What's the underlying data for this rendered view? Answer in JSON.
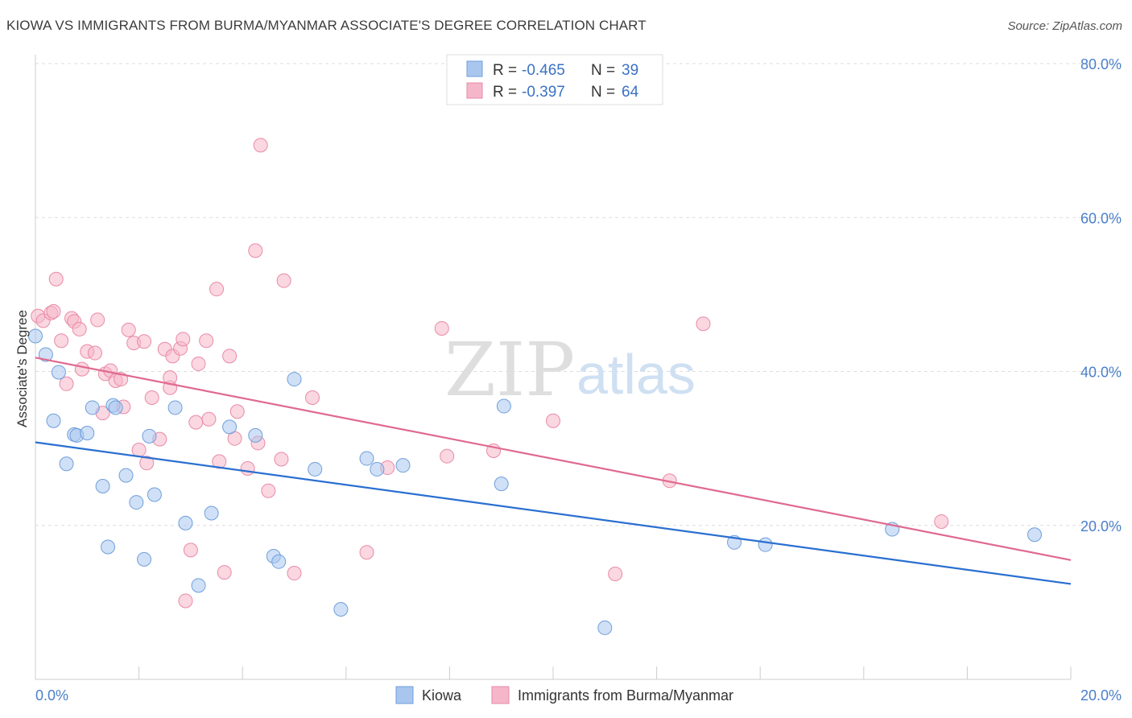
{
  "title": "KIOWA VS IMMIGRANTS FROM BURMA/MYANMAR ASSOCIATE'S DEGREE CORRELATION CHART",
  "source": "Source: ZipAtlas.com",
  "watermark": {
    "zip": "ZIP",
    "atlas": "atlas"
  },
  "colors": {
    "kiowa": "#a9c6ee",
    "kiowa_stroke": "#6f9fdc",
    "kiowa_line": "#2a6fd0",
    "burma": "#f5b6c9",
    "burma_stroke": "#e98aa7",
    "burma_line": "#e0698f",
    "tick_label": "#4a7fc9",
    "grid": "#dddddd"
  },
  "legend": {
    "rows": [
      {
        "r_label": "R =",
        "r_value": "-0.465",
        "n_label": "N =",
        "n_value": "39"
      },
      {
        "r_label": "R =",
        "r_value": "-0.397",
        "n_label": "N =",
        "n_value": "64"
      }
    ]
  },
  "chart_data": {
    "type": "scatter",
    "title": "KIOWA VS IMMIGRANTS FROM BURMA/MYANMAR ASSOCIATE'S DEGREE CORRELATION CHART",
    "xlabel": "",
    "ylabel": "Associate's Degree",
    "xlim": [
      0,
      20
    ],
    "ylim": [
      0,
      80
    ],
    "x_tick_labels": [
      "0.0%",
      "20.0%"
    ],
    "y_ticks": [
      20,
      40,
      60,
      80
    ],
    "y_tick_labels": [
      "20.0%",
      "40.0%",
      "60.0%",
      "80.0%"
    ],
    "grid": true,
    "legend_position": "bottom",
    "series": [
      {
        "name": "Kiowa",
        "trend": {
          "x": [
            0,
            20
          ],
          "y": [
            30.8,
            12.4
          ]
        },
        "points": [
          [
            0.0,
            44.6
          ],
          [
            0.2,
            42.2
          ],
          [
            0.35,
            33.6
          ],
          [
            0.45,
            39.9
          ],
          [
            0.6,
            28.0
          ],
          [
            0.75,
            31.8
          ],
          [
            0.8,
            31.7
          ],
          [
            1.0,
            32.0
          ],
          [
            1.1,
            35.3
          ],
          [
            1.3,
            25.1
          ],
          [
            1.4,
            17.2
          ],
          [
            1.5,
            35.6
          ],
          [
            1.55,
            35.3
          ],
          [
            1.75,
            26.5
          ],
          [
            1.95,
            23.0
          ],
          [
            2.1,
            15.6
          ],
          [
            2.2,
            31.6
          ],
          [
            2.3,
            24.0
          ],
          [
            2.7,
            35.3
          ],
          [
            2.9,
            20.3
          ],
          [
            3.15,
            12.2
          ],
          [
            3.4,
            21.6
          ],
          [
            3.75,
            32.8
          ],
          [
            4.25,
            31.7
          ],
          [
            4.6,
            16.0
          ],
          [
            4.7,
            15.3
          ],
          [
            5.0,
            39.0
          ],
          [
            5.4,
            27.3
          ],
          [
            5.9,
            9.1
          ],
          [
            6.4,
            28.7
          ],
          [
            6.6,
            27.3
          ],
          [
            7.1,
            27.8
          ],
          [
            9.0,
            25.4
          ],
          [
            9.05,
            35.5
          ],
          [
            11.0,
            6.7
          ],
          [
            13.5,
            17.8
          ],
          [
            14.1,
            17.5
          ],
          [
            16.55,
            19.5
          ],
          [
            19.3,
            18.8
          ]
        ]
      },
      {
        "name": "Immigrants from Burma/Myanmar",
        "trend": {
          "x": [
            0,
            20
          ],
          "y": [
            41.8,
            15.5
          ]
        },
        "points": [
          [
            0.05,
            47.2
          ],
          [
            0.15,
            46.6
          ],
          [
            0.3,
            47.6
          ],
          [
            0.35,
            47.8
          ],
          [
            0.4,
            52.0
          ],
          [
            0.5,
            44.0
          ],
          [
            0.6,
            38.4
          ],
          [
            0.7,
            46.9
          ],
          [
            0.75,
            46.5
          ],
          [
            0.85,
            45.5
          ],
          [
            0.9,
            40.3
          ],
          [
            1.0,
            42.6
          ],
          [
            1.15,
            42.4
          ],
          [
            1.2,
            46.7
          ],
          [
            1.3,
            34.6
          ],
          [
            1.35,
            39.7
          ],
          [
            1.45,
            40.1
          ],
          [
            1.55,
            38.8
          ],
          [
            1.65,
            39.0
          ],
          [
            1.7,
            35.4
          ],
          [
            1.8,
            45.4
          ],
          [
            1.9,
            43.7
          ],
          [
            2.0,
            29.8
          ],
          [
            2.1,
            43.9
          ],
          [
            2.15,
            28.1
          ],
          [
            2.25,
            36.6
          ],
          [
            2.4,
            31.2
          ],
          [
            2.5,
            42.9
          ],
          [
            2.6,
            37.9
          ],
          [
            2.6,
            39.2
          ],
          [
            2.65,
            42.0
          ],
          [
            2.8,
            43.0
          ],
          [
            2.85,
            44.2
          ],
          [
            2.9,
            10.2
          ],
          [
            3.0,
            16.8
          ],
          [
            3.1,
            33.4
          ],
          [
            3.15,
            41.0
          ],
          [
            3.3,
            44.0
          ],
          [
            3.35,
            33.8
          ],
          [
            3.5,
            50.7
          ],
          [
            3.55,
            28.3
          ],
          [
            3.65,
            13.9
          ],
          [
            3.75,
            42.0
          ],
          [
            3.85,
            31.3
          ],
          [
            3.9,
            34.8
          ],
          [
            4.1,
            27.4
          ],
          [
            4.25,
            55.7
          ],
          [
            4.3,
            30.7
          ],
          [
            4.35,
            69.4
          ],
          [
            4.5,
            24.5
          ],
          [
            4.75,
            28.6
          ],
          [
            4.8,
            51.8
          ],
          [
            5.0,
            13.8
          ],
          [
            5.35,
            36.6
          ],
          [
            6.4,
            16.5
          ],
          [
            6.8,
            27.5
          ],
          [
            7.85,
            45.6
          ],
          [
            7.95,
            29.0
          ],
          [
            8.85,
            29.7
          ],
          [
            10.0,
            33.6
          ],
          [
            11.2,
            13.7
          ],
          [
            12.25,
            25.8
          ],
          [
            12.9,
            46.2
          ],
          [
            17.5,
            20.5
          ]
        ]
      }
    ]
  }
}
